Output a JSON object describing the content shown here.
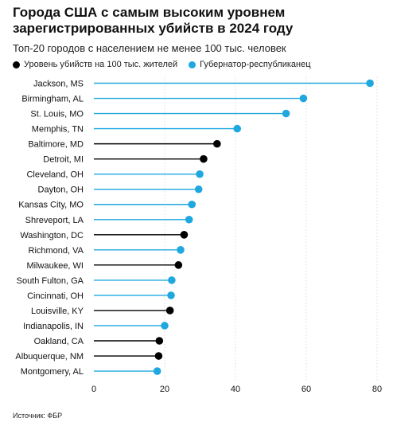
{
  "chart_data": {
    "type": "lollipop",
    "title": "Города США с самым высоким уровнем зарегистрированных убийств в 2024 году",
    "subtitle": "Топ-20 городов с населением не менее 100 тыс. человек",
    "legend": [
      {
        "name": "Уровень убийств на 100 тыс. жителей",
        "color": "#000000"
      },
      {
        "name": "Губернатор-республиканец",
        "color": "#1fa8e0"
      }
    ],
    "source": "Источник: ФБР",
    "xlim": [
      0,
      85
    ],
    "xticks": [
      0,
      20,
      40,
      60,
      80
    ],
    "grid": true,
    "categories": [
      "Jackson, MS",
      "Birmingham, AL",
      "St. Louis, MO",
      "Memphis, TN",
      "Baltimore, MD",
      "Detroit, MI",
      "Cleveland, OH",
      "Dayton, OH",
      "Kansas City, MO",
      "Shreveport, LA",
      "Washington, DC",
      "Richmond, VA",
      "Milwaukee, WI",
      "South Fulton, GA",
      "Cincinnati, OH",
      "Louisville, KY",
      "Indianapolis, IN",
      "Oakland, CA",
      "Albuquerque, NM",
      "Montgomery, AL"
    ],
    "values": [
      78.0,
      59.2,
      54.3,
      40.5,
      34.8,
      31.0,
      29.9,
      29.6,
      27.7,
      26.9,
      25.5,
      24.5,
      23.9,
      22.0,
      21.8,
      21.5,
      20.0,
      18.5,
      18.3,
      17.9
    ],
    "republican_governor": [
      true,
      true,
      true,
      true,
      false,
      false,
      true,
      true,
      true,
      true,
      false,
      true,
      false,
      true,
      true,
      false,
      true,
      false,
      false,
      true
    ]
  }
}
